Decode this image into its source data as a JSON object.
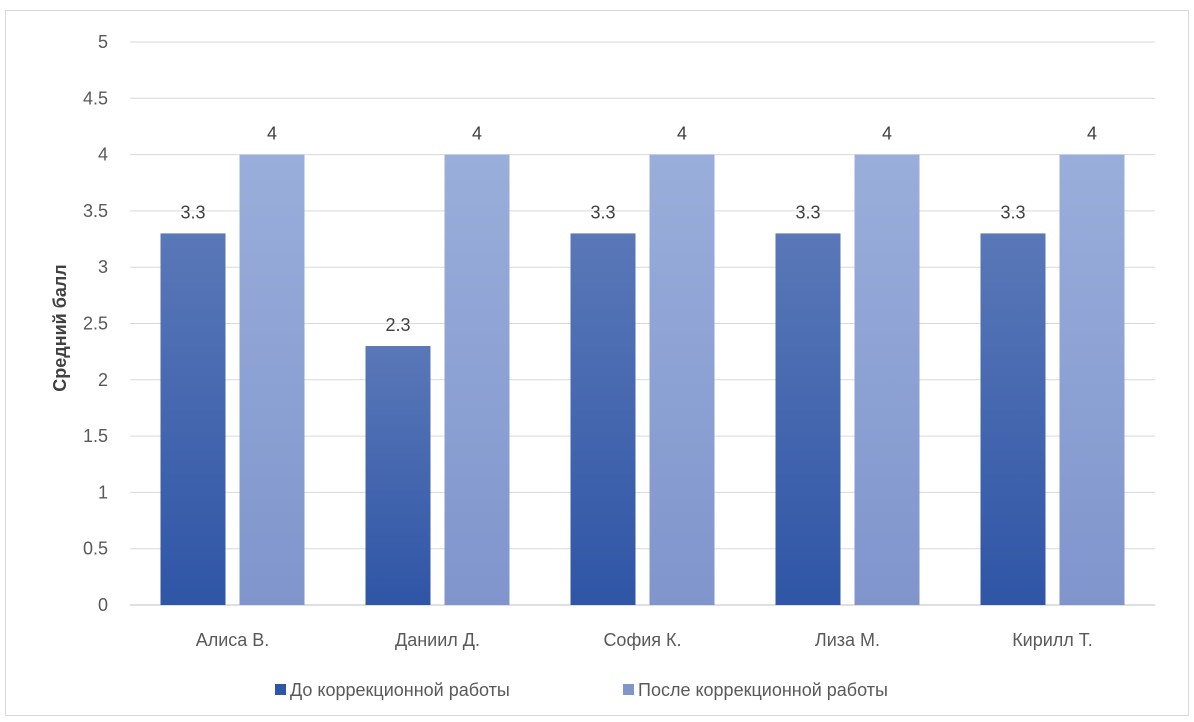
{
  "chart_data": {
    "type": "bar",
    "title": "",
    "xlabel": "",
    "ylabel": "Средний балл",
    "ylim": [
      0,
      5
    ],
    "yticks": [
      "0",
      "0.5",
      "1",
      "1.5",
      "2",
      "2.5",
      "3",
      "3.5",
      "4",
      "4.5",
      "5"
    ],
    "grid": true,
    "legend_position": "bottom",
    "categories": [
      "Алиса В.",
      "Даниил Д.",
      "София К.",
      "Лиза М.",
      "Кирилл Т."
    ],
    "series": [
      {
        "name": "До коррекционной работы",
        "values": [
          3.3,
          2.3,
          3.3,
          3.3,
          3.3
        ],
        "color": "#2f55a6",
        "color_top": "#5a78b8"
      },
      {
        "name": "После коррекционной работы",
        "values": [
          4,
          4,
          4,
          4,
          4
        ],
        "color": "#7f95cc",
        "color_top": "#9aaedb"
      }
    ],
    "data_labels": [
      [
        "3.3",
        "2.3",
        "3.3",
        "3.3",
        "3.3"
      ],
      [
        "4",
        "4",
        "4",
        "4",
        "4"
      ]
    ]
  }
}
